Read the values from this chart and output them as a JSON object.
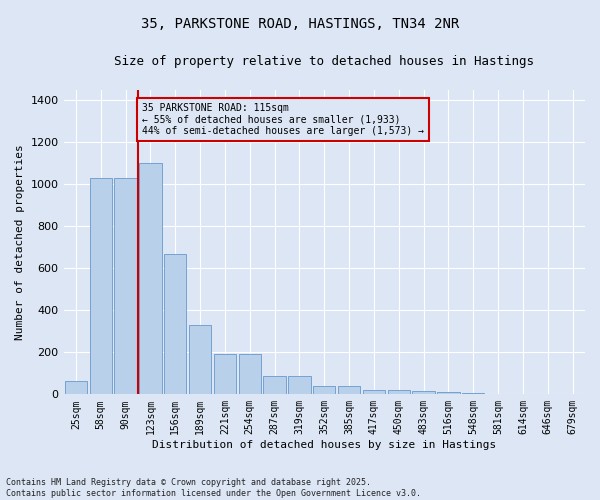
{
  "title": "35, PARKSTONE ROAD, HASTINGS, TN34 2NR",
  "subtitle": "Size of property relative to detached houses in Hastings",
  "xlabel": "Distribution of detached houses by size in Hastings",
  "ylabel": "Number of detached properties",
  "bar_labels": [
    "25sqm",
    "58sqm",
    "90sqm",
    "123sqm",
    "156sqm",
    "189sqm",
    "221sqm",
    "254sqm",
    "287sqm",
    "319sqm",
    "352sqm",
    "385sqm",
    "417sqm",
    "450sqm",
    "483sqm",
    "516sqm",
    "548sqm",
    "581sqm",
    "614sqm",
    "646sqm",
    "679sqm"
  ],
  "bar_values": [
    65,
    1030,
    1030,
    1100,
    670,
    330,
    190,
    190,
    85,
    85,
    40,
    40,
    20,
    20,
    15,
    12,
    8,
    0,
    0,
    0,
    0
  ],
  "bar_color": "#b8d0ea",
  "bar_edge_color": "#6699cc",
  "vline_color": "#cc0000",
  "vline_pos": 2.5,
  "annotation_line1": "35 PARKSTONE ROAD: 115sqm",
  "annotation_line2": "← 55% of detached houses are smaller (1,933)",
  "annotation_line3": "44% of semi-detached houses are larger (1,573) →",
  "ylim": [
    0,
    1450
  ],
  "yticks": [
    0,
    200,
    400,
    600,
    800,
    1000,
    1200,
    1400
  ],
  "bg_color": "#dce6f5",
  "grid_color": "#ffffff",
  "footer": "Contains HM Land Registry data © Crown copyright and database right 2025.\nContains public sector information licensed under the Open Government Licence v3.0.",
  "title_fontsize": 10,
  "subtitle_fontsize": 9,
  "annotation_fontsize": 7,
  "ylabel_fontsize": 8,
  "xlabel_fontsize": 8,
  "tick_fontsize": 7,
  "ytick_fontsize": 8,
  "footer_fontsize": 6
}
